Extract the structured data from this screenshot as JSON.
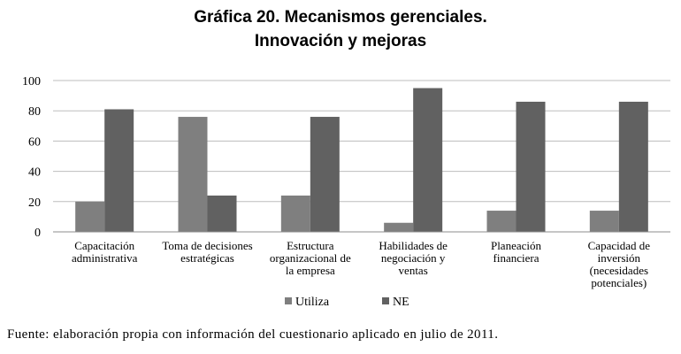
{
  "chart_data": {
    "type": "bar",
    "title": [
      "Gráfica 20. Mecanismos gerenciales.",
      "Innovación y mejoras"
    ],
    "categories": [
      [
        "Capacitación",
        "administrativa"
      ],
      [
        "Toma de decisiones",
        "estratégicas"
      ],
      [
        "Estructura",
        "organizacional de",
        "la empresa"
      ],
      [
        "Habilidades de",
        "negociación y",
        "ventas"
      ],
      [
        "Planeación",
        "financiera"
      ],
      [
        "Capacidad de",
        "inversión",
        "(necesidades",
        "potenciales)"
      ]
    ],
    "series": [
      {
        "name": "Utiliza",
        "color": "#7f7f7f",
        "values": [
          20,
          76,
          24,
          6,
          14,
          14
        ]
      },
      {
        "name": "NE",
        "color": "#616161",
        "values": [
          81,
          24,
          76,
          95,
          86,
          86
        ]
      }
    ],
    "ylim": [
      0,
      100
    ],
    "yticks": [
      0,
      20,
      40,
      60,
      80,
      100
    ],
    "grid": true,
    "legend": "bottom-center"
  },
  "source_note": "Fuente: elaboración propia con información del cuestionario aplicado en julio de 2011."
}
